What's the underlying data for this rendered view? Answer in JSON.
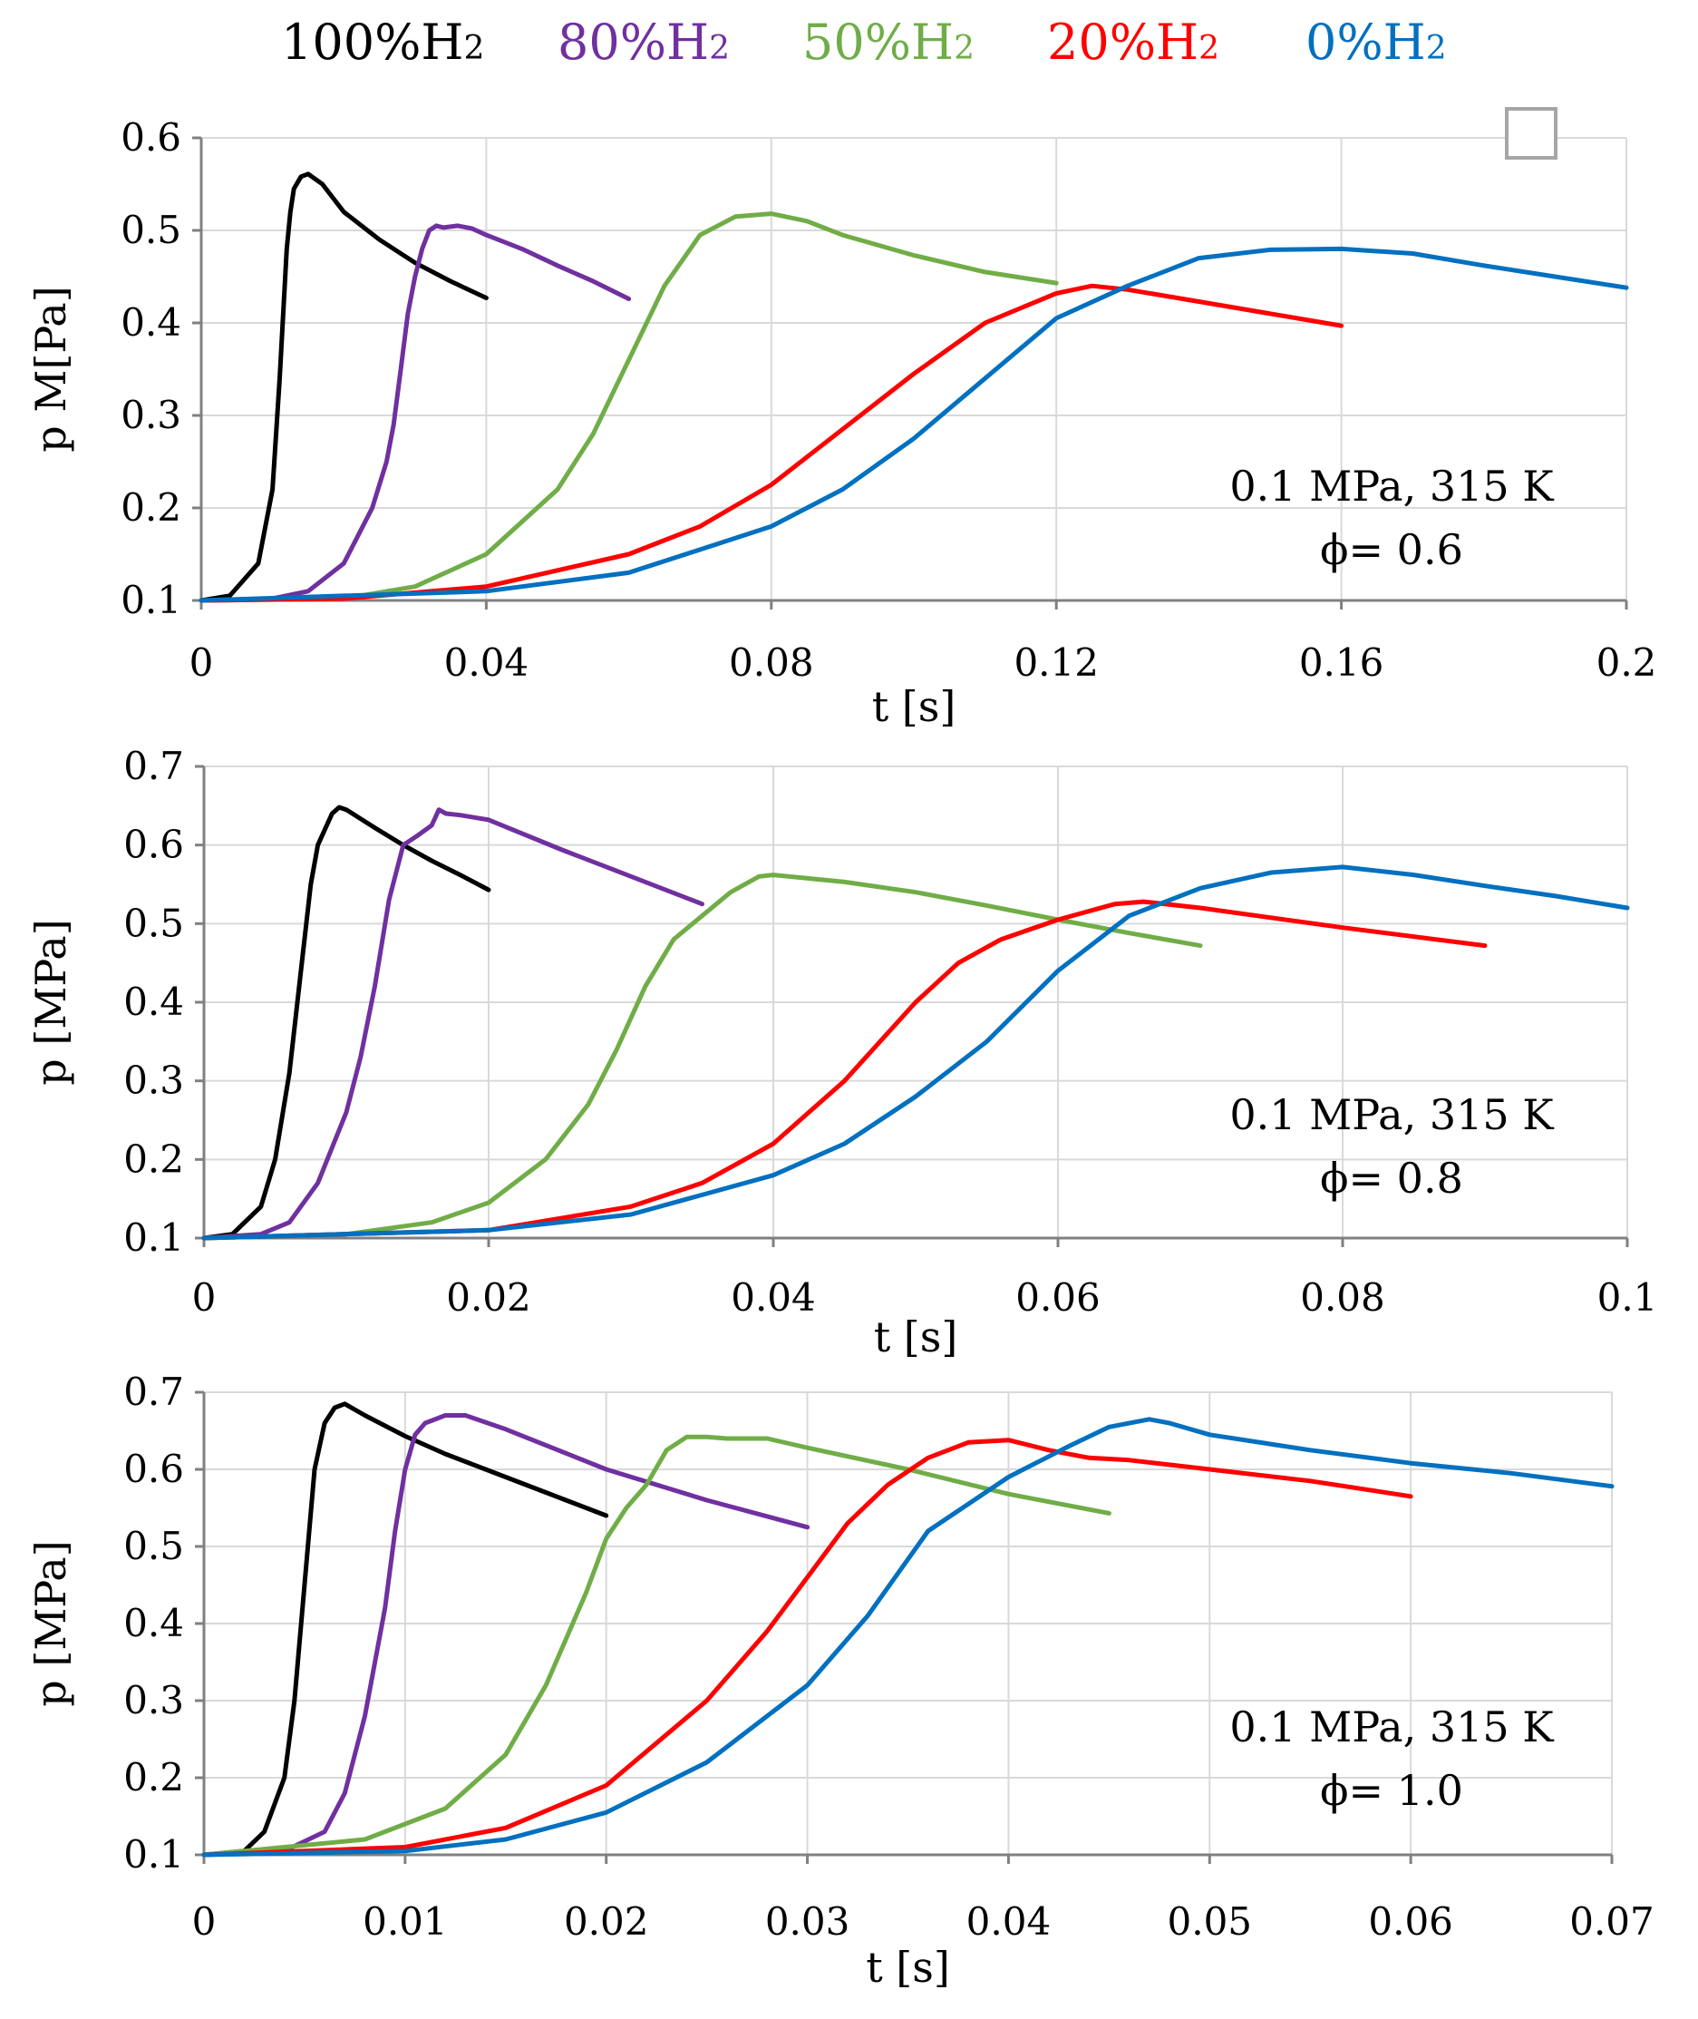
{
  "legend": [
    {
      "text": "100%H",
      "sub": "2",
      "color": "#000000"
    },
    {
      "text": "80%H",
      "sub": "2",
      "color": "#7030a0"
    },
    {
      "text": "50%H",
      "sub": "2",
      "color": "#70ad47"
    },
    {
      "text": "20%H",
      "sub": "2",
      "color": "#ff0000"
    },
    {
      "text": "0%H",
      "sub": "2",
      "color": "#0070c0"
    }
  ],
  "chart_data": [
    {
      "type": "line",
      "xlabel": "t [s]",
      "ylabel": "p M[Pa]",
      "xlim": [
        0,
        0.2
      ],
      "ylim": [
        0.1,
        0.6
      ],
      "xticks": [
        0,
        0.04,
        0.08,
        0.12,
        0.16,
        0.2
      ],
      "xtick_labels": [
        "0",
        "0.04",
        "0.08",
        "0.12",
        "0.16",
        "0.2"
      ],
      "yticks": [
        0.1,
        0.2,
        0.3,
        0.4,
        0.5,
        0.6
      ],
      "ytick_labels": [
        "0.1",
        "0.2",
        "0.3",
        "0.4",
        "0.5",
        "0.6"
      ],
      "grid": true,
      "annotation": [
        "0.1 MPa, 315 K",
        "ϕ= 0.6"
      ],
      "series": [
        {
          "name": "100%H2",
          "color": "#000000",
          "x": [
            0,
            0.004,
            0.008,
            0.01,
            0.011,
            0.012,
            0.0125,
            0.013,
            0.014,
            0.015,
            0.017,
            0.02,
            0.025,
            0.03,
            0.035,
            0.04
          ],
          "y": [
            0.1,
            0.105,
            0.14,
            0.22,
            0.34,
            0.48,
            0.52,
            0.545,
            0.558,
            0.561,
            0.55,
            0.52,
            0.49,
            0.465,
            0.445,
            0.427
          ]
        },
        {
          "name": "80%H2",
          "color": "#7030a0",
          "x": [
            0,
            0.01,
            0.015,
            0.02,
            0.024,
            0.026,
            0.027,
            0.028,
            0.029,
            0.03,
            0.031,
            0.032,
            0.033,
            0.034,
            0.036,
            0.038,
            0.04,
            0.045,
            0.05,
            0.055,
            0.06
          ],
          "y": [
            0.1,
            0.102,
            0.11,
            0.14,
            0.2,
            0.25,
            0.29,
            0.35,
            0.41,
            0.45,
            0.48,
            0.5,
            0.505,
            0.503,
            0.505,
            0.502,
            0.495,
            0.48,
            0.462,
            0.445,
            0.426
          ]
        },
        {
          "name": "50%H2",
          "color": "#70ad47",
          "x": [
            0,
            0.02,
            0.03,
            0.04,
            0.05,
            0.055,
            0.06,
            0.065,
            0.07,
            0.075,
            0.08,
            0.085,
            0.09,
            0.1,
            0.11,
            0.12
          ],
          "y": [
            0.1,
            0.102,
            0.115,
            0.15,
            0.22,
            0.28,
            0.36,
            0.44,
            0.495,
            0.515,
            0.518,
            0.51,
            0.495,
            0.473,
            0.455,
            0.443
          ]
        },
        {
          "name": "20%H2",
          "color": "#ff0000",
          "x": [
            0,
            0.02,
            0.04,
            0.06,
            0.07,
            0.08,
            0.09,
            0.1,
            0.11,
            0.12,
            0.125,
            0.13,
            0.14,
            0.15,
            0.16
          ],
          "y": [
            0.1,
            0.102,
            0.115,
            0.15,
            0.18,
            0.225,
            0.285,
            0.345,
            0.4,
            0.432,
            0.44,
            0.436,
            0.423,
            0.41,
            0.397
          ]
        },
        {
          "name": "0%H2",
          "color": "#0070c0",
          "x": [
            0,
            0.04,
            0.06,
            0.08,
            0.09,
            0.1,
            0.11,
            0.12,
            0.13,
            0.14,
            0.15,
            0.16,
            0.17,
            0.18,
            0.19,
            0.2
          ],
          "y": [
            0.1,
            0.11,
            0.13,
            0.18,
            0.22,
            0.275,
            0.34,
            0.405,
            0.44,
            0.47,
            0.479,
            0.48,
            0.475,
            0.462,
            0.45,
            0.438
          ]
        }
      ]
    },
    {
      "type": "line",
      "xlabel": "t [s]",
      "ylabel": "p [MPa]",
      "xlim": [
        0,
        0.1
      ],
      "ylim": [
        0.1,
        0.7
      ],
      "xticks": [
        0,
        0.02,
        0.04,
        0.06,
        0.08,
        0.1
      ],
      "xtick_labels": [
        "0",
        "0.02",
        "0.04",
        "0.06",
        "0.08",
        "0.1"
      ],
      "yticks": [
        0.1,
        0.2,
        0.3,
        0.4,
        0.5,
        0.6,
        0.7
      ],
      "ytick_labels": [
        "0.1",
        "0.2",
        "0.3",
        "0.4",
        "0.5",
        "0.6",
        "0.7"
      ],
      "grid": true,
      "annotation": [
        "0.1 MPa, 315 K",
        "ϕ= 0.8"
      ],
      "series": [
        {
          "name": "100%H2",
          "color": "#000000",
          "x": [
            0,
            0.002,
            0.004,
            0.005,
            0.006,
            0.007,
            0.0075,
            0.008,
            0.009,
            0.0095,
            0.01,
            0.012,
            0.014,
            0.016,
            0.018,
            0.02
          ],
          "y": [
            0.1,
            0.105,
            0.14,
            0.2,
            0.31,
            0.47,
            0.55,
            0.6,
            0.64,
            0.648,
            0.645,
            0.622,
            0.6,
            0.58,
            0.562,
            0.543
          ]
        },
        {
          "name": "80%H2",
          "color": "#7030a0",
          "x": [
            0,
            0.004,
            0.006,
            0.008,
            0.01,
            0.011,
            0.012,
            0.013,
            0.014,
            0.015,
            0.016,
            0.0165,
            0.017,
            0.018,
            0.019,
            0.02,
            0.025,
            0.03,
            0.035
          ],
          "y": [
            0.1,
            0.105,
            0.12,
            0.17,
            0.26,
            0.33,
            0.42,
            0.53,
            0.6,
            0.612,
            0.625,
            0.645,
            0.64,
            0.638,
            0.635,
            0.632,
            0.595,
            0.56,
            0.525
          ]
        },
        {
          "name": "50%H2",
          "color": "#70ad47",
          "x": [
            0,
            0.01,
            0.016,
            0.02,
            0.024,
            0.027,
            0.029,
            0.031,
            0.033,
            0.035,
            0.037,
            0.039,
            0.04,
            0.045,
            0.05,
            0.055,
            0.06,
            0.065,
            0.07
          ],
          "y": [
            0.1,
            0.105,
            0.12,
            0.145,
            0.2,
            0.27,
            0.34,
            0.42,
            0.48,
            0.51,
            0.54,
            0.56,
            0.562,
            0.553,
            0.54,
            0.523,
            0.505,
            0.488,
            0.472
          ]
        },
        {
          "name": "20%H2",
          "color": "#ff0000",
          "x": [
            0,
            0.02,
            0.03,
            0.035,
            0.04,
            0.045,
            0.05,
            0.053,
            0.056,
            0.06,
            0.064,
            0.066,
            0.07,
            0.08,
            0.09
          ],
          "y": [
            0.1,
            0.11,
            0.14,
            0.17,
            0.22,
            0.3,
            0.4,
            0.45,
            0.48,
            0.505,
            0.525,
            0.528,
            0.52,
            0.495,
            0.472
          ]
        },
        {
          "name": "0%H2",
          "color": "#0070c0",
          "x": [
            0,
            0.02,
            0.03,
            0.04,
            0.045,
            0.05,
            0.055,
            0.06,
            0.065,
            0.07,
            0.075,
            0.08,
            0.085,
            0.09,
            0.095,
            0.1
          ],
          "y": [
            0.1,
            0.11,
            0.13,
            0.18,
            0.22,
            0.28,
            0.35,
            0.44,
            0.51,
            0.545,
            0.565,
            0.572,
            0.562,
            0.548,
            0.535,
            0.52
          ]
        }
      ]
    },
    {
      "type": "line",
      "xlabel": "t [s]",
      "ylabel": "p [MPa]",
      "xlim": [
        0,
        0.07
      ],
      "ylim": [
        0.1,
        0.7
      ],
      "xticks": [
        0,
        0.01,
        0.02,
        0.03,
        0.04,
        0.05,
        0.06,
        0.07
      ],
      "xtick_labels": [
        "0",
        "0.01",
        "0.02",
        "0.03",
        "0.04",
        "0.05",
        "0.06",
        "0.07"
      ],
      "yticks": [
        0.1,
        0.2,
        0.3,
        0.4,
        0.5,
        0.6,
        0.7
      ],
      "ytick_labels": [
        "0.1",
        "0.2",
        "0.3",
        "0.4",
        "0.5",
        "0.6",
        "0.7"
      ],
      "grid": true,
      "annotation": [
        "0.1 MPa, 315 K",
        "ϕ= 1.0"
      ],
      "series": [
        {
          "name": "100%H2",
          "color": "#000000",
          "x": [
            0,
            0.002,
            0.003,
            0.004,
            0.0045,
            0.005,
            0.0055,
            0.006,
            0.0065,
            0.007,
            0.008,
            0.01,
            0.012,
            0.014,
            0.016,
            0.018,
            0.02
          ],
          "y": [
            0.1,
            0.105,
            0.13,
            0.2,
            0.3,
            0.45,
            0.6,
            0.66,
            0.68,
            0.685,
            0.67,
            0.643,
            0.62,
            0.6,
            0.58,
            0.56,
            0.54
          ]
        },
        {
          "name": "80%H2",
          "color": "#7030a0",
          "x": [
            0,
            0.004,
            0.006,
            0.007,
            0.008,
            0.009,
            0.0095,
            0.01,
            0.0105,
            0.011,
            0.012,
            0.013,
            0.015,
            0.02,
            0.025,
            0.03
          ],
          "y": [
            0.1,
            0.105,
            0.13,
            0.18,
            0.28,
            0.42,
            0.52,
            0.6,
            0.645,
            0.66,
            0.67,
            0.67,
            0.652,
            0.6,
            0.56,
            0.525
          ]
        },
        {
          "name": "50%H2",
          "color": "#70ad47",
          "x": [
            0,
            0.008,
            0.012,
            0.015,
            0.017,
            0.019,
            0.02,
            0.021,
            0.022,
            0.023,
            0.024,
            0.025,
            0.026,
            0.027,
            0.028,
            0.03,
            0.035,
            0.04,
            0.045
          ],
          "y": [
            0.1,
            0.12,
            0.16,
            0.23,
            0.32,
            0.44,
            0.51,
            0.55,
            0.58,
            0.625,
            0.642,
            0.642,
            0.64,
            0.64,
            0.64,
            0.628,
            0.6,
            0.568,
            0.543
          ]
        },
        {
          "name": "20%H2",
          "color": "#ff0000",
          "x": [
            0,
            0.01,
            0.015,
            0.02,
            0.025,
            0.028,
            0.03,
            0.032,
            0.034,
            0.036,
            0.038,
            0.04,
            0.042,
            0.044,
            0.046,
            0.05,
            0.055,
            0.06
          ],
          "y": [
            0.1,
            0.11,
            0.135,
            0.19,
            0.3,
            0.39,
            0.46,
            0.53,
            0.58,
            0.615,
            0.635,
            0.638,
            0.625,
            0.615,
            0.612,
            0.6,
            0.585,
            0.565
          ]
        },
        {
          "name": "0%H2",
          "color": "#0070c0",
          "x": [
            0,
            0.01,
            0.015,
            0.02,
            0.025,
            0.03,
            0.033,
            0.036,
            0.04,
            0.043,
            0.045,
            0.047,
            0.048,
            0.05,
            0.055,
            0.06,
            0.065,
            0.07
          ],
          "y": [
            0.1,
            0.105,
            0.12,
            0.155,
            0.22,
            0.32,
            0.41,
            0.52,
            0.59,
            0.63,
            0.655,
            0.665,
            0.66,
            0.645,
            0.625,
            0.608,
            0.595,
            0.578
          ]
        }
      ]
    }
  ]
}
